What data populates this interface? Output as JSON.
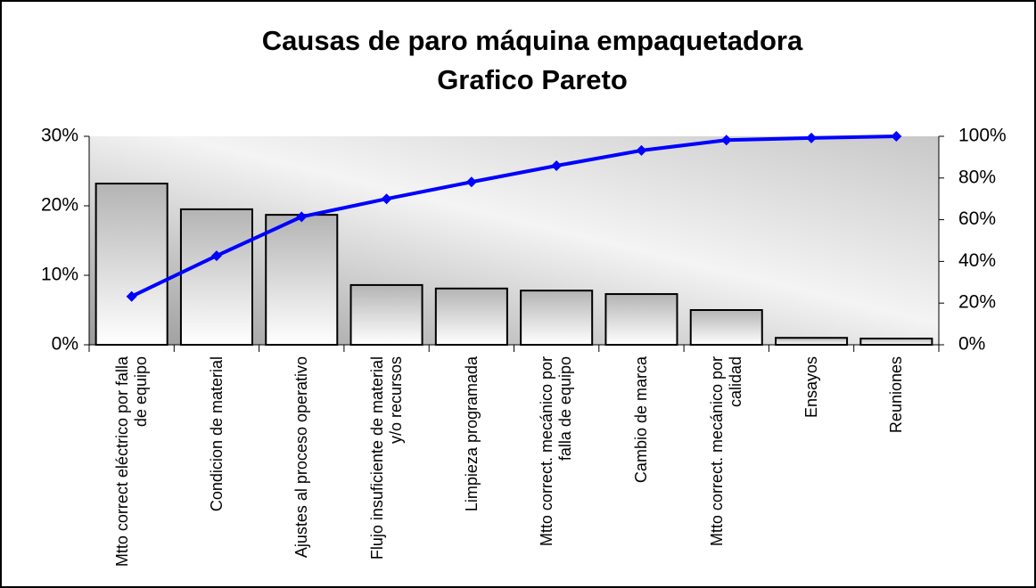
{
  "chart_data": {
    "type": "pareto",
    "title": "Causas de paro máquina empaquetadora",
    "subtitle": "Grafico Pareto",
    "categories": [
      "Mtto correct eléctrico por falla de equipo",
      "Condicion de material",
      "Ajustes al proceso operativo",
      "Flujo insuficiente de material y/o recursos",
      "Limpieza programada",
      "Mtto correct. mecánico por falla de equipo",
      "Cambio de marca",
      "Mtto correct. mecánico por calidad",
      "Ensayos",
      "Reuniones"
    ],
    "series": [
      {
        "type": "bar",
        "color": "#b0b0b0",
        "values": [
          23.2,
          19.5,
          18.7,
          8.6,
          8.1,
          7.8,
          7.3,
          5.0,
          1.0,
          0.9
        ]
      },
      {
        "type": "line",
        "axis": "y2",
        "color": "#0000ff",
        "values": [
          23.2,
          42.7,
          61.4,
          70.0,
          78.1,
          85.9,
          93.2,
          98.2,
          99.2,
          100
        ]
      }
    ],
    "ylim": [
      0,
      30
    ],
    "yticks": [
      {
        "value": 0,
        "label": "0%"
      },
      {
        "value": 10,
        "label": "10%"
      },
      {
        "value": 20,
        "label": "20%"
      },
      {
        "value": 30,
        "label": "30%"
      }
    ],
    "y2lim": [
      0,
      100
    ],
    "y2ticks": [
      {
        "value": 0,
        "label": "0%"
      },
      {
        "value": 20,
        "label": "20%"
      },
      {
        "value": 40,
        "label": "40%"
      },
      {
        "value": 60,
        "label": "60%"
      },
      {
        "value": 80,
        "label": "80%"
      },
      {
        "value": 100,
        "label": "100%"
      }
    ]
  }
}
